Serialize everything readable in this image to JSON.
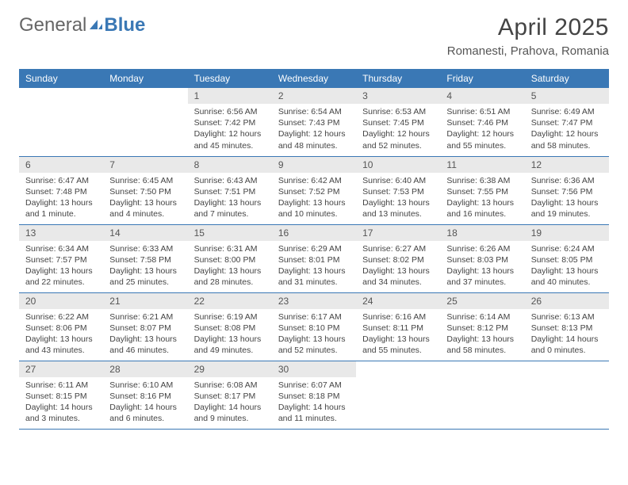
{
  "brand": {
    "part1": "General",
    "part2": "Blue"
  },
  "title": "April 2025",
  "location": "Romanesti, Prahova, Romania",
  "colors": {
    "header_bg": "#3a78b5",
    "header_text": "#ffffff",
    "daynum_bg": "#e9e9e9",
    "border": "#3a78b5",
    "text": "#444444"
  },
  "weekdays": [
    "Sunday",
    "Monday",
    "Tuesday",
    "Wednesday",
    "Thursday",
    "Friday",
    "Saturday"
  ],
  "first_weekday_index": 2,
  "days": [
    {
      "n": 1,
      "sunrise": "6:56 AM",
      "sunset": "7:42 PM",
      "daylight": "12 hours and 45 minutes."
    },
    {
      "n": 2,
      "sunrise": "6:54 AM",
      "sunset": "7:43 PM",
      "daylight": "12 hours and 48 minutes."
    },
    {
      "n": 3,
      "sunrise": "6:53 AM",
      "sunset": "7:45 PM",
      "daylight": "12 hours and 52 minutes."
    },
    {
      "n": 4,
      "sunrise": "6:51 AM",
      "sunset": "7:46 PM",
      "daylight": "12 hours and 55 minutes."
    },
    {
      "n": 5,
      "sunrise": "6:49 AM",
      "sunset": "7:47 PM",
      "daylight": "12 hours and 58 minutes."
    },
    {
      "n": 6,
      "sunrise": "6:47 AM",
      "sunset": "7:48 PM",
      "daylight": "13 hours and 1 minute."
    },
    {
      "n": 7,
      "sunrise": "6:45 AM",
      "sunset": "7:50 PM",
      "daylight": "13 hours and 4 minutes."
    },
    {
      "n": 8,
      "sunrise": "6:43 AM",
      "sunset": "7:51 PM",
      "daylight": "13 hours and 7 minutes."
    },
    {
      "n": 9,
      "sunrise": "6:42 AM",
      "sunset": "7:52 PM",
      "daylight": "13 hours and 10 minutes."
    },
    {
      "n": 10,
      "sunrise": "6:40 AM",
      "sunset": "7:53 PM",
      "daylight": "13 hours and 13 minutes."
    },
    {
      "n": 11,
      "sunrise": "6:38 AM",
      "sunset": "7:55 PM",
      "daylight": "13 hours and 16 minutes."
    },
    {
      "n": 12,
      "sunrise": "6:36 AM",
      "sunset": "7:56 PM",
      "daylight": "13 hours and 19 minutes."
    },
    {
      "n": 13,
      "sunrise": "6:34 AM",
      "sunset": "7:57 PM",
      "daylight": "13 hours and 22 minutes."
    },
    {
      "n": 14,
      "sunrise": "6:33 AM",
      "sunset": "7:58 PM",
      "daylight": "13 hours and 25 minutes."
    },
    {
      "n": 15,
      "sunrise": "6:31 AM",
      "sunset": "8:00 PM",
      "daylight": "13 hours and 28 minutes."
    },
    {
      "n": 16,
      "sunrise": "6:29 AM",
      "sunset": "8:01 PM",
      "daylight": "13 hours and 31 minutes."
    },
    {
      "n": 17,
      "sunrise": "6:27 AM",
      "sunset": "8:02 PM",
      "daylight": "13 hours and 34 minutes."
    },
    {
      "n": 18,
      "sunrise": "6:26 AM",
      "sunset": "8:03 PM",
      "daylight": "13 hours and 37 minutes."
    },
    {
      "n": 19,
      "sunrise": "6:24 AM",
      "sunset": "8:05 PM",
      "daylight": "13 hours and 40 minutes."
    },
    {
      "n": 20,
      "sunrise": "6:22 AM",
      "sunset": "8:06 PM",
      "daylight": "13 hours and 43 minutes."
    },
    {
      "n": 21,
      "sunrise": "6:21 AM",
      "sunset": "8:07 PM",
      "daylight": "13 hours and 46 minutes."
    },
    {
      "n": 22,
      "sunrise": "6:19 AM",
      "sunset": "8:08 PM",
      "daylight": "13 hours and 49 minutes."
    },
    {
      "n": 23,
      "sunrise": "6:17 AM",
      "sunset": "8:10 PM",
      "daylight": "13 hours and 52 minutes."
    },
    {
      "n": 24,
      "sunrise": "6:16 AM",
      "sunset": "8:11 PM",
      "daylight": "13 hours and 55 minutes."
    },
    {
      "n": 25,
      "sunrise": "6:14 AM",
      "sunset": "8:12 PM",
      "daylight": "13 hours and 58 minutes."
    },
    {
      "n": 26,
      "sunrise": "6:13 AM",
      "sunset": "8:13 PM",
      "daylight": "14 hours and 0 minutes."
    },
    {
      "n": 27,
      "sunrise": "6:11 AM",
      "sunset": "8:15 PM",
      "daylight": "14 hours and 3 minutes."
    },
    {
      "n": 28,
      "sunrise": "6:10 AM",
      "sunset": "8:16 PM",
      "daylight": "14 hours and 6 minutes."
    },
    {
      "n": 29,
      "sunrise": "6:08 AM",
      "sunset": "8:17 PM",
      "daylight": "14 hours and 9 minutes."
    },
    {
      "n": 30,
      "sunrise": "6:07 AM",
      "sunset": "8:18 PM",
      "daylight": "14 hours and 11 minutes."
    }
  ],
  "labels": {
    "sunrise": "Sunrise:",
    "sunset": "Sunset:",
    "daylight": "Daylight:"
  }
}
